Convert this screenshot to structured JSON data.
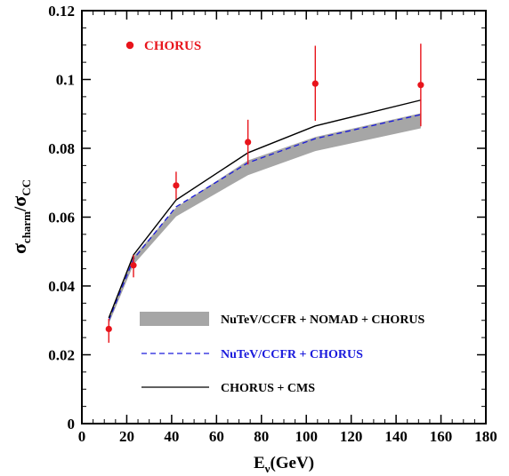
{
  "chart_data": {
    "type": "line",
    "xlim": [
      0,
      180
    ],
    "ylim": [
      0,
      0.12
    ],
    "x_ticks": [
      "0",
      "20",
      "40",
      "60",
      "80",
      "100",
      "120",
      "140",
      "160",
      "180"
    ],
    "y_ticks": [
      "0",
      "0.02",
      "0.04",
      "0.06",
      "0.08",
      "0.1",
      "0.12"
    ],
    "xlabel": {
      "main": "E",
      "sub": "ν",
      "tail": "(GeV)"
    },
    "ylabel": {
      "sigma1": "σ",
      "sub1": "charm",
      "slash": "/",
      "sigma2": "σ",
      "sub2": "CC"
    },
    "grid": false,
    "legend_placement": "bottom-right",
    "data_legend_placement": "top-left",
    "series": [
      {
        "name": "CHORUS",
        "kind": "points",
        "color": "#e8141b",
        "points": [
          {
            "x": 12.0,
            "y": 0.0275,
            "yerr_low": 0.004,
            "yerr_high": 0.003
          },
          {
            "x": 23.0,
            "y": 0.046,
            "yerr_low": 0.0035,
            "yerr_high": 0.003
          },
          {
            "x": 42.0,
            "y": 0.0692,
            "yerr_low": 0.004,
            "yerr_high": 0.004
          },
          {
            "x": 74.0,
            "y": 0.0818,
            "yerr_low": 0.0065,
            "yerr_high": 0.0065
          },
          {
            "x": 104.0,
            "y": 0.0988,
            "yerr_low": 0.0108,
            "yerr_high": 0.011
          },
          {
            "x": 151.0,
            "y": 0.0984,
            "yerr_low": 0.012,
            "yerr_high": 0.012
          }
        ]
      },
      {
        "name": "NuTeV/CCFR + NOMAD + CHORUS",
        "kind": "band",
        "color": "#a6a6a6",
        "x": [
          12,
          23,
          42,
          74,
          104,
          151
        ],
        "lower": [
          0.029,
          0.0462,
          0.0602,
          0.0722,
          0.0792,
          0.0858
        ],
        "upper": [
          0.0302,
          0.0485,
          0.0628,
          0.0765,
          0.0833,
          0.0902
        ]
      },
      {
        "name": "NuTeV/CCFR + CHORUS",
        "kind": "dashed",
        "color": "#1a1adc",
        "x": [
          12,
          23,
          42,
          74,
          104,
          151
        ],
        "y": [
          0.03,
          0.0478,
          0.063,
          0.0758,
          0.0828,
          0.0898
        ]
      },
      {
        "name": "CHORUS + CMS",
        "kind": "solid",
        "color": "#000000",
        "x": [
          12,
          23,
          42,
          74,
          104,
          151
        ],
        "y": [
          0.0307,
          0.049,
          0.065,
          0.0787,
          0.0865,
          0.094
        ]
      }
    ]
  }
}
